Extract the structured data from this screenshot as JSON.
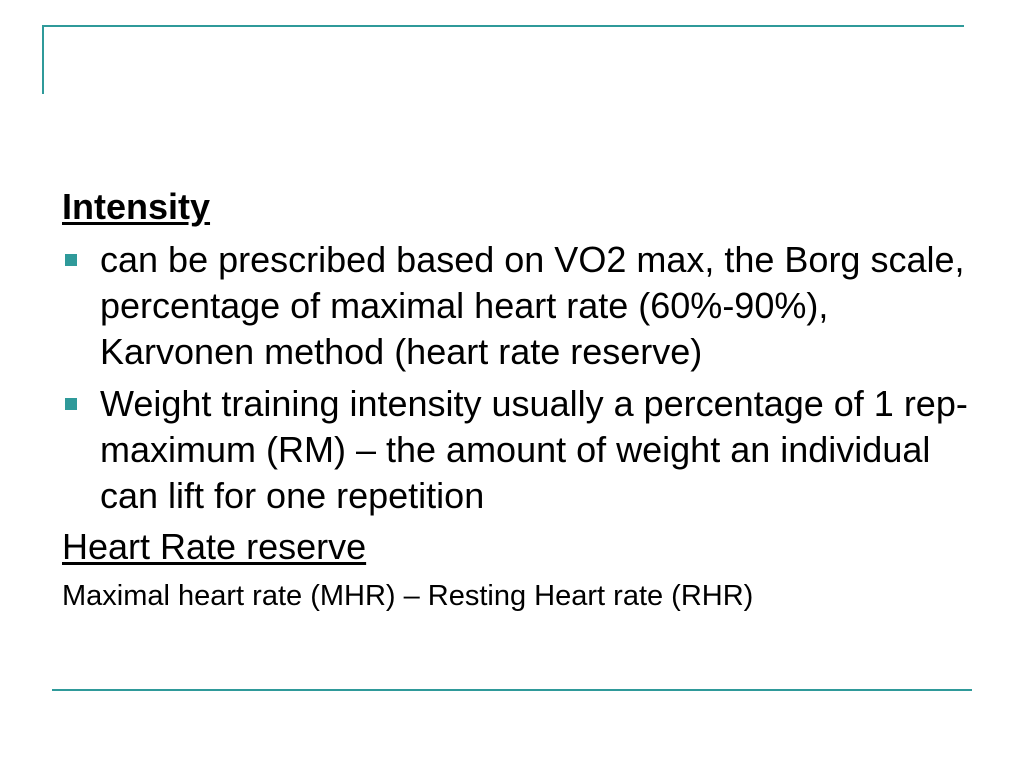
{
  "slide": {
    "accent_color": "#2f9a9a",
    "section1_heading": "Intensity",
    "bullets": [
      {
        "text": "can be prescribed based on VO2 max, the Borg scale, percentage of maximal heart rate (60%-90%), Karvonen method (heart rate reserve)"
      },
      {
        "text": "Weight training intensity usually a percentage of 1 rep-maximum (RM) – the amount of weight an individual can lift for one repetition"
      }
    ],
    "section2_heading": "Heart Rate reserve",
    "formula_text": "Maximal heart rate (MHR) – Resting Heart rate (RHR)",
    "bullet_icon": "square-bullet"
  }
}
